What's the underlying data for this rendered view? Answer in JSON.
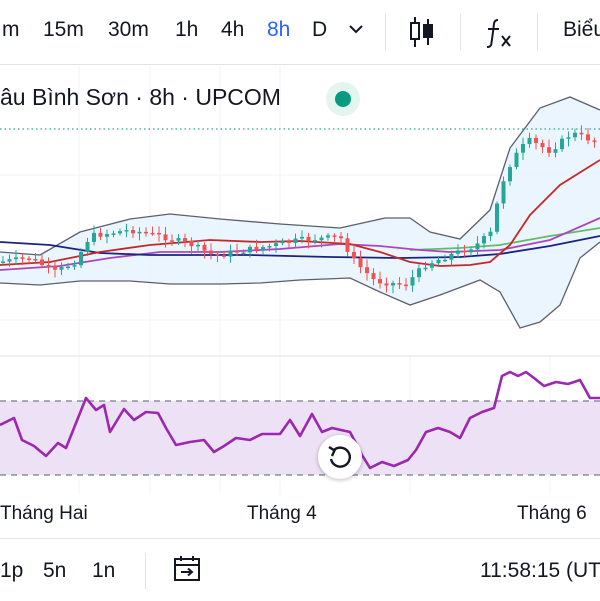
{
  "toolbar": {
    "timeframes": [
      "m",
      "15m",
      "30m",
      "1h",
      "4h",
      "8h",
      "D"
    ],
    "active_timeframe": "8h",
    "chart_type_label": "Biểu"
  },
  "legend": {
    "symbol_text": "âu Bình Sơn · 8h · UPCOM",
    "status_color": "#089981"
  },
  "time_axis": {
    "labels": [
      "Tháng Hai",
      "Tháng 4",
      "Tháng 6"
    ]
  },
  "bottom_bar": {
    "ranges": [
      "1p",
      "5n",
      "1n"
    ],
    "clock": "11:58:15 (UT"
  },
  "colors": {
    "up": "#26a69a",
    "down": "#ef5350",
    "rsi": "#9c27b0",
    "rsi_band": "#ede1f5",
    "accent": "#2962ff"
  }
}
